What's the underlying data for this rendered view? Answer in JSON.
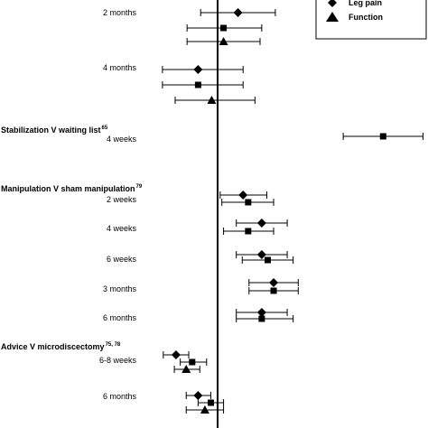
{
  "chart_data": {
    "type": "scatter",
    "title": "",
    "xlabel": "",
    "ylabel": "",
    "reference_line": 0,
    "legend": {
      "placement": "top-right",
      "entries": [
        {
          "name": "Leg pain",
          "marker": "diamond"
        },
        {
          "name": "Function",
          "marker": "triangle"
        }
      ]
    },
    "groups": [
      {
        "label": "",
        "ref": "",
        "rows": [
          {
            "label": "2 months",
            "points": [
              {
                "marker": "diamond",
                "est": 0.24,
                "lo": -0.2,
                "hi": 0.68
              },
              {
                "marker": "square",
                "est": 0.07,
                "lo": -0.36,
                "hi": 0.52
              },
              {
                "marker": "triangle",
                "est": 0.07,
                "lo": -0.36,
                "hi": 0.5
              }
            ]
          },
          {
            "label": "4 months",
            "points": [
              {
                "marker": "diamond",
                "est": -0.23,
                "lo": -0.65,
                "hi": 0.3
              },
              {
                "marker": "square",
                "est": -0.23,
                "lo": -0.65,
                "hi": 0.3
              },
              {
                "marker": "triangle",
                "est": -0.07,
                "lo": -0.5,
                "hi": 0.44
              }
            ]
          }
        ]
      },
      {
        "label": "Stabilization V waiting list",
        "ref": "65",
        "rows": [
          {
            "label": "4 weeks",
            "points": [
              {
                "marker": "square",
                "est": 1.95,
                "lo": 1.48,
                "hi": 2.42
              }
            ]
          }
        ]
      },
      {
        "label": "Manipulation V sham manipulation",
        "ref": "79",
        "rows": [
          {
            "label": "2 weeks",
            "points": [
              {
                "marker": "diamond",
                "est": 0.3,
                "lo": 0.03,
                "hi": 0.58
              },
              {
                "marker": "square",
                "est": 0.36,
                "lo": 0.05,
                "hi": 0.66
              }
            ]
          },
          {
            "label": "4 weeks",
            "points": [
              {
                "marker": "diamond",
                "est": 0.52,
                "lo": 0.22,
                "hi": 0.82
              },
              {
                "marker": "square",
                "est": 0.36,
                "lo": 0.07,
                "hi": 0.66
              }
            ]
          },
          {
            "label": "6 weeks",
            "points": [
              {
                "marker": "diamond",
                "est": 0.52,
                "lo": 0.22,
                "hi": 0.82
              },
              {
                "marker": "square",
                "est": 0.59,
                "lo": 0.29,
                "hi": 0.89
              }
            ]
          },
          {
            "label": "3 months",
            "points": [
              {
                "marker": "diamond",
                "est": 0.66,
                "lo": 0.37,
                "hi": 0.95
              },
              {
                "marker": "square",
                "est": 0.66,
                "lo": 0.37,
                "hi": 0.95
              }
            ]
          },
          {
            "label": "6 months",
            "points": [
              {
                "marker": "diamond",
                "est": 0.52,
                "lo": 0.22,
                "hi": 0.82
              },
              {
                "marker": "square",
                "est": 0.52,
                "lo": 0.22,
                "hi": 0.89
              }
            ]
          }
        ]
      },
      {
        "label": "Advice V microdiscectomy",
        "ref": "75, 78",
        "rows": [
          {
            "label": "6-8 weeks",
            "points": [
              {
                "marker": "diamond",
                "est": -0.49,
                "lo": -0.64,
                "hi": -0.34
              },
              {
                "marker": "square",
                "est": -0.3,
                "lo": -0.44,
                "hi": -0.13
              },
              {
                "marker": "triangle",
                "est": -0.37,
                "lo": -0.51,
                "hi": -0.21
              }
            ]
          },
          {
            "label": "6 months",
            "points": [
              {
                "marker": "diamond",
                "est": -0.23,
                "lo": -0.37,
                "hi": -0.08
              },
              {
                "marker": "square",
                "est": -0.08,
                "lo": -0.23,
                "hi": 0.07
              },
              {
                "marker": "triangle",
                "est": -0.15,
                "lo": -0.37,
                "hi": 0.07
              }
            ]
          }
        ]
      }
    ]
  }
}
